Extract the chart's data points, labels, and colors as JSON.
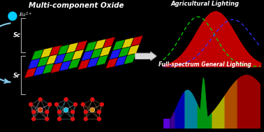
{
  "bg_color": "#000000",
  "title_left": "Multi-component Oxide",
  "label_sc": "Sc",
  "label_sr": "Sr",
  "label_agri": "Agricultural Lighting",
  "label_full": "Full-spectrum General Lighting",
  "checkerboard_colors": [
    "#cc0000",
    "#1a1aee",
    "#00aa00",
    "#ddcc00"
  ],
  "text_color": "#ffffff",
  "agri_peak_mu": 0.62,
  "agri_peak_sigma": 0.12,
  "green_mu": 0.52,
  "blue_mu": 0.7
}
